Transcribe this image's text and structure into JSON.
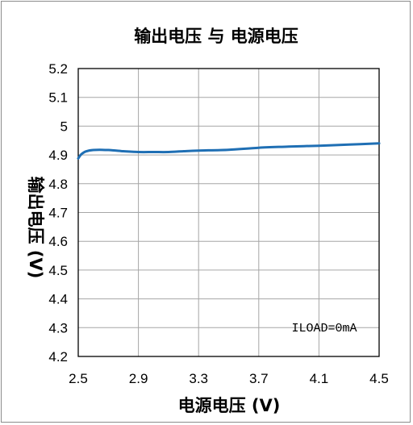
{
  "chart_data": {
    "type": "line",
    "title": "输出电压 与 电源电压",
    "xlabel": "电源电压 (V)",
    "ylabel": "输出电压 (V)",
    "xlim": [
      2.5,
      4.5
    ],
    "ylim": [
      4.2,
      5.2
    ],
    "x_ticks": [
      "2.5",
      "2.9",
      "3.3",
      "3.7",
      "4.1",
      "4.5"
    ],
    "y_ticks": [
      "4.2",
      "4.3",
      "4.4",
      "4.5",
      "4.6",
      "4.7",
      "4.8",
      "4.9",
      "5",
      "5.1",
      "5.2"
    ],
    "grid": true,
    "series": [
      {
        "color": "#1f6fb4",
        "points": [
          [
            2.5,
            4.888
          ],
          [
            2.52,
            4.902
          ],
          [
            2.55,
            4.912
          ],
          [
            2.6,
            4.917
          ],
          [
            2.7,
            4.917
          ],
          [
            2.8,
            4.913
          ],
          [
            2.9,
            4.91
          ],
          [
            3.0,
            4.91
          ],
          [
            3.1,
            4.91
          ],
          [
            3.2,
            4.913
          ],
          [
            3.3,
            4.915
          ],
          [
            3.5,
            4.918
          ],
          [
            3.7,
            4.925
          ],
          [
            3.9,
            4.929
          ],
          [
            4.1,
            4.932
          ],
          [
            4.3,
            4.936
          ],
          [
            4.5,
            4.94
          ]
        ]
      }
    ],
    "annotations": [
      "ILOAD=0mA"
    ]
  }
}
